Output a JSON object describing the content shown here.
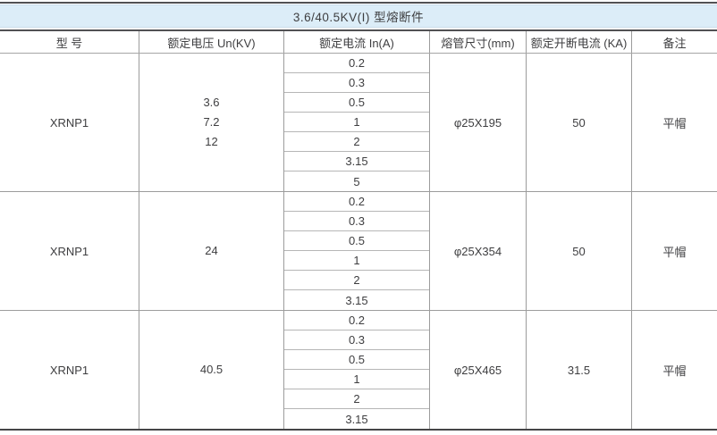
{
  "title": "3.6/40.5KV(I) 型熔断件",
  "columns": [
    "型 号",
    "额定电压 Un(KV)",
    "额定电流 In(A)",
    "熔管尺寸(mm)",
    "额定开断电流 (KA)",
    "备注"
  ],
  "groups": [
    {
      "model": "XRNP1",
      "voltages": [
        "3.6",
        "7.2",
        "12"
      ],
      "currents": [
        "0.2",
        "0.3",
        "0.5",
        "1",
        "2",
        "3.15",
        "5"
      ],
      "tube_size": "φ25X195",
      "breaking_current": "50",
      "note": "平帽"
    },
    {
      "model": "XRNP1",
      "voltages": [
        "24"
      ],
      "currents": [
        "0.2",
        "0.3",
        "0.5",
        "1",
        "2",
        "3.15"
      ],
      "tube_size": "φ25X354",
      "breaking_current": "50",
      "note": "平帽"
    },
    {
      "model": "XRNP1",
      "voltages": [
        "40.5"
      ],
      "currents": [
        "0.2",
        "0.3",
        "0.5",
        "1",
        "2",
        "3.15"
      ],
      "tube_size": "φ25X465",
      "breaking_current": "31.5",
      "note": "平帽"
    }
  ],
  "colors": {
    "title_bar_bg": "#dcedf8",
    "rule_dark": "#515154",
    "grid_line": "#9c9c9c",
    "sub_line": "#b6b6b6",
    "text": "#3e3e40"
  }
}
